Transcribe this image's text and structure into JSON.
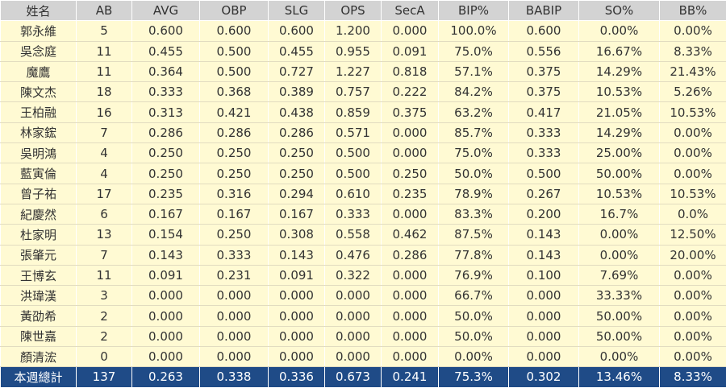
{
  "columns": [
    "姓名",
    "AB",
    "AVG",
    "OBP",
    "SLG",
    "OPS",
    "SecA",
    "BIP%",
    "BABIP",
    "SO%",
    "BB%"
  ],
  "rows": [
    [
      "郭永維",
      "5",
      "0.600",
      "0.600",
      "0.600",
      "1.200",
      "0.000",
      "100.0%",
      "0.600",
      "0.00%",
      "0.00%"
    ],
    [
      "吳念庭",
      "11",
      "0.455",
      "0.500",
      "0.455",
      "0.955",
      "0.091",
      "75.0%",
      "0.556",
      "16.67%",
      "8.33%"
    ],
    [
      "魔鷹",
      "11",
      "0.364",
      "0.500",
      "0.727",
      "1.227",
      "0.818",
      "57.1%",
      "0.375",
      "14.29%",
      "21.43%"
    ],
    [
      "陳文杰",
      "18",
      "0.333",
      "0.368",
      "0.389",
      "0.757",
      "0.222",
      "84.2%",
      "0.375",
      "10.53%",
      "5.26%"
    ],
    [
      "王柏融",
      "16",
      "0.313",
      "0.421",
      "0.438",
      "0.859",
      "0.375",
      "63.2%",
      "0.417",
      "21.05%",
      "10.53%"
    ],
    [
      "林家鋐",
      "7",
      "0.286",
      "0.286",
      "0.286",
      "0.571",
      "0.000",
      "85.7%",
      "0.333",
      "14.29%",
      "0.00%"
    ],
    [
      "吳明鴻",
      "4",
      "0.250",
      "0.250",
      "0.250",
      "0.500",
      "0.000",
      "75.0%",
      "0.333",
      "25.00%",
      "0.00%"
    ],
    [
      "藍寅倫",
      "4",
      "0.250",
      "0.250",
      "0.250",
      "0.500",
      "0.250",
      "50.0%",
      "0.500",
      "50.00%",
      "0.00%"
    ],
    [
      "曾子祐",
      "17",
      "0.235",
      "0.316",
      "0.294",
      "0.610",
      "0.235",
      "78.9%",
      "0.267",
      "10.53%",
      "10.53%"
    ],
    [
      "紀慶然",
      "6",
      "0.167",
      "0.167",
      "0.167",
      "0.333",
      "0.000",
      "83.3%",
      "0.200",
      "16.7%",
      "0.0%"
    ],
    [
      "杜家明",
      "13",
      "0.154",
      "0.250",
      "0.308",
      "0.558",
      "0.462",
      "87.5%",
      "0.143",
      "0.00%",
      "12.50%"
    ],
    [
      "張肇元",
      "7",
      "0.143",
      "0.333",
      "0.143",
      "0.476",
      "0.286",
      "77.8%",
      "0.143",
      "0.00%",
      "20.00%"
    ],
    [
      "王博玄",
      "11",
      "0.091",
      "0.231",
      "0.091",
      "0.322",
      "0.000",
      "76.9%",
      "0.100",
      "7.69%",
      "0.00%"
    ],
    [
      "洪瑋漢",
      "3",
      "0.000",
      "0.000",
      "0.000",
      "0.000",
      "0.000",
      "66.7%",
      "0.000",
      "33.33%",
      "0.00%"
    ],
    [
      "黃劭希",
      "2",
      "0.000",
      "0.000",
      "0.000",
      "0.000",
      "0.000",
      "50.0%",
      "0.000",
      "50.00%",
      "0.00%"
    ],
    [
      "陳世嘉",
      "2",
      "0.000",
      "0.000",
      "0.000",
      "0.000",
      "0.000",
      "50.0%",
      "0.000",
      "50.00%",
      "0.00%"
    ],
    [
      "顏清浤",
      "0",
      "0.000",
      "0.000",
      "0.000",
      "0.000",
      "0.000",
      "0.00%",
      "0.000",
      "0.00%",
      "0.00%"
    ]
  ],
  "total": [
    "本週總計",
    "137",
    "0.263",
    "0.338",
    "0.336",
    "0.673",
    "0.241",
    "75.3%",
    "0.302",
    "13.46%",
    "8.33%"
  ],
  "colors": {
    "header": "#d3d3d3",
    "row": "#fffad3",
    "total": "#1f4b87"
  }
}
